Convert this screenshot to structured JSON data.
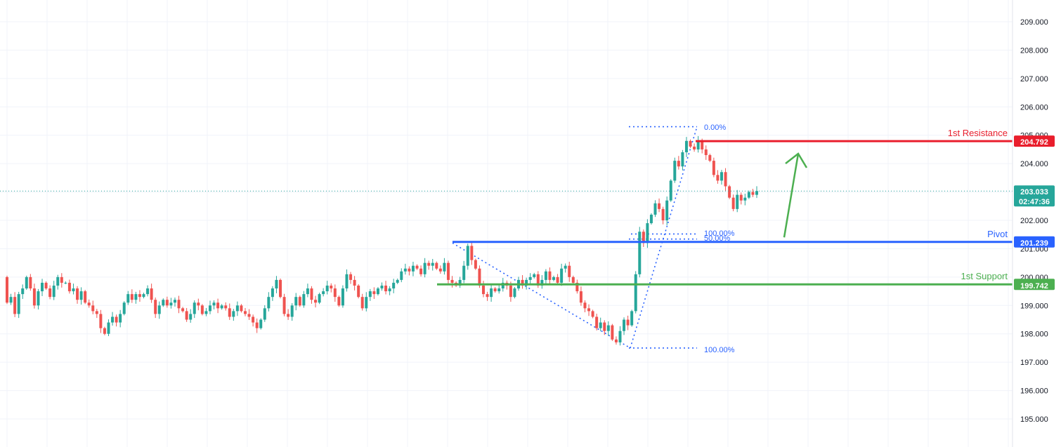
{
  "chart_data": {
    "type": "candlestick",
    "y_ticks": [
      "209.000",
      "208.000",
      "207.000",
      "206.000",
      "205.000",
      "204.000",
      "203.000",
      "202.000",
      "201.000",
      "200.000",
      "199.000",
      "198.000",
      "197.000",
      "196.000",
      "195.000"
    ],
    "ylim": [
      194.3,
      209.7
    ],
    "levels": [
      {
        "name": "1st Resistance",
        "value": 204.792,
        "label": "204.792",
        "color": "#e91e2c"
      },
      {
        "name": "Pivot",
        "value": 201.239,
        "label": "201.239",
        "color": "#2962ff"
      },
      {
        "name": "1st Support",
        "value": 199.742,
        "label": "199.742",
        "color": "#4caf50"
      }
    ],
    "last_price": {
      "value": 203.033,
      "label": "203.033",
      "countdown": "02:47:36",
      "color": "#26a69a"
    },
    "fib_swing_high": {
      "labels": [
        "0.00%"
      ],
      "price": 205.3
    },
    "fib_swing_low": {
      "labels": [
        "100.00%"
      ],
      "price": 197.5
    },
    "fib_mid": {
      "labels": [
        "100.00%",
        "50.00%"
      ],
      "prices": [
        201.52,
        201.34
      ]
    },
    "forecast_arrow": {
      "color": "#4caf50",
      "from_price": 201.4,
      "to_price": 204.35
    },
    "candles": [
      [
        200.0,
        199.1
      ],
      [
        199.1,
        199.3
      ],
      [
        199.3,
        198.7
      ],
      [
        198.7,
        199.4
      ],
      [
        199.4,
        199.6
      ],
      [
        199.6,
        200.0
      ],
      [
        200.0,
        199.6
      ],
      [
        199.6,
        199.0
      ],
      [
        199.0,
        199.5
      ],
      [
        199.5,
        199.8
      ],
      [
        199.8,
        199.6
      ],
      [
        199.6,
        199.3
      ],
      [
        199.3,
        199.7
      ],
      [
        199.7,
        200.0
      ],
      [
        200.0,
        199.8
      ],
      [
        199.8,
        199.8
      ],
      [
        199.8,
        199.5
      ],
      [
        199.5,
        199.6
      ],
      [
        199.6,
        199.2
      ],
      [
        199.2,
        199.5
      ],
      [
        199.5,
        199.1
      ],
      [
        199.1,
        199.0
      ],
      [
        199.0,
        198.8
      ],
      [
        198.8,
        198.7
      ],
      [
        198.7,
        198.2
      ],
      [
        198.2,
        198.0
      ],
      [
        198.0,
        198.4
      ],
      [
        198.4,
        198.6
      ],
      [
        198.6,
        198.4
      ],
      [
        198.4,
        198.7
      ],
      [
        198.7,
        199.1
      ],
      [
        199.1,
        199.4
      ],
      [
        199.4,
        199.2
      ],
      [
        199.2,
        199.4
      ],
      [
        199.4,
        199.3
      ],
      [
        199.3,
        199.4
      ],
      [
        199.4,
        199.6
      ],
      [
        199.6,
        199.2
      ],
      [
        199.2,
        198.7
      ],
      [
        198.7,
        199.0
      ],
      [
        199.0,
        199.2
      ],
      [
        199.2,
        199.0
      ],
      [
        199.0,
        199.1
      ],
      [
        199.1,
        199.2
      ],
      [
        199.2,
        198.9
      ],
      [
        198.9,
        198.8
      ],
      [
        198.8,
        198.5
      ],
      [
        198.5,
        198.7
      ],
      [
        198.7,
        199.1
      ],
      [
        199.1,
        199.0
      ],
      [
        199.0,
        198.7
      ],
      [
        198.7,
        198.8
      ],
      [
        198.8,
        199.0
      ],
      [
        199.0,
        199.1
      ],
      [
        199.1,
        198.9
      ],
      [
        198.9,
        199.0
      ],
      [
        199.0,
        198.9
      ],
      [
        198.9,
        198.6
      ],
      [
        198.6,
        198.8
      ],
      [
        198.8,
        199.0
      ],
      [
        199.0,
        198.8
      ],
      [
        198.8,
        198.7
      ],
      [
        198.7,
        198.6
      ],
      [
        198.6,
        198.4
      ],
      [
        198.4,
        198.2
      ],
      [
        198.2,
        198.5
      ],
      [
        198.5,
        198.9
      ],
      [
        198.9,
        199.3
      ],
      [
        199.3,
        199.6
      ],
      [
        199.6,
        199.9
      ],
      [
        199.9,
        199.3
      ],
      [
        199.3,
        198.7
      ],
      [
        198.7,
        198.6
      ],
      [
        198.6,
        199.0
      ],
      [
        199.0,
        199.3
      ],
      [
        199.3,
        199.0
      ],
      [
        199.0,
        199.4
      ],
      [
        199.4,
        199.6
      ],
      [
        199.6,
        199.2
      ],
      [
        199.2,
        199.1
      ],
      [
        199.1,
        199.4
      ],
      [
        199.4,
        199.5
      ],
      [
        199.5,
        199.7
      ],
      [
        199.7,
        199.6
      ],
      [
        199.6,
        199.3
      ],
      [
        199.3,
        199.0
      ],
      [
        199.0,
        199.6
      ],
      [
        199.6,
        200.1
      ],
      [
        200.1,
        199.9
      ],
      [
        199.9,
        199.7
      ],
      [
        199.7,
        199.3
      ],
      [
        199.3,
        198.9
      ],
      [
        198.9,
        199.3
      ],
      [
        199.3,
        199.5
      ],
      [
        199.5,
        199.4
      ],
      [
        199.4,
        199.6
      ],
      [
        199.6,
        199.7
      ],
      [
        199.7,
        199.5
      ],
      [
        199.5,
        199.6
      ],
      [
        199.6,
        199.8
      ],
      [
        199.8,
        199.9
      ],
      [
        199.9,
        200.2
      ],
      [
        200.2,
        200.3
      ],
      [
        200.3,
        200.2
      ],
      [
        200.2,
        200.4
      ],
      [
        200.4,
        200.3
      ],
      [
        200.3,
        200.1
      ],
      [
        200.1,
        200.5
      ],
      [
        200.5,
        200.4
      ],
      [
        200.4,
        200.5
      ],
      [
        200.5,
        200.3
      ],
      [
        200.3,
        200.2
      ],
      [
        200.2,
        200.5
      ],
      [
        200.5,
        199.9
      ],
      [
        199.9,
        199.8
      ],
      [
        199.8,
        199.7
      ],
      [
        199.7,
        199.9
      ],
      [
        199.9,
        200.4
      ],
      [
        200.4,
        201.1
      ],
      [
        201.1,
        200.6
      ],
      [
        200.6,
        200.3
      ],
      [
        200.3,
        199.7
      ],
      [
        199.7,
        199.4
      ],
      [
        199.4,
        199.3
      ],
      [
        199.3,
        199.6
      ],
      [
        199.6,
        199.5
      ],
      [
        199.5,
        199.6
      ],
      [
        199.6,
        199.8
      ],
      [
        199.8,
        199.7
      ],
      [
        199.7,
        199.3
      ],
      [
        199.3,
        199.6
      ],
      [
        199.6,
        199.9
      ],
      [
        199.9,
        199.7
      ],
      [
        199.7,
        199.9
      ],
      [
        199.9,
        200.0
      ],
      [
        200.0,
        200.1
      ],
      [
        200.1,
        199.7
      ],
      [
        199.7,
        199.9
      ],
      [
        199.9,
        200.2
      ],
      [
        200.2,
        199.9
      ],
      [
        199.9,
        200.0
      ],
      [
        200.0,
        199.8
      ],
      [
        199.8,
        200.3
      ],
      [
        200.3,
        200.4
      ],
      [
        200.4,
        200.0
      ],
      [
        200.0,
        199.8
      ],
      [
        199.8,
        199.5
      ],
      [
        199.5,
        199.1
      ],
      [
        199.1,
        198.9
      ],
      [
        198.9,
        198.8
      ],
      [
        198.8,
        198.6
      ],
      [
        198.6,
        198.2
      ],
      [
        198.2,
        198.4
      ],
      [
        198.4,
        198.1
      ],
      [
        198.1,
        198.3
      ],
      [
        198.3,
        197.8
      ],
      [
        197.8,
        197.7
      ],
      [
        197.7,
        198.1
      ],
      [
        198.1,
        198.5
      ],
      [
        198.5,
        198.3
      ],
      [
        198.3,
        198.8
      ],
      [
        198.8,
        200.1
      ],
      [
        200.1,
        201.6
      ],
      [
        201.6,
        201.2
      ],
      [
        201.2,
        201.9
      ],
      [
        201.9,
        202.2
      ],
      [
        202.2,
        202.6
      ],
      [
        202.6,
        202.4
      ],
      [
        202.4,
        202.0
      ],
      [
        202.0,
        202.7
      ],
      [
        202.7,
        203.4
      ],
      [
        203.4,
        204.1
      ],
      [
        204.1,
        203.9
      ],
      [
        203.9,
        204.4
      ],
      [
        204.4,
        204.8
      ],
      [
        204.8,
        204.6
      ],
      [
        204.6,
        204.5
      ],
      [
        204.5,
        204.8
      ],
      [
        204.8,
        204.5
      ],
      [
        204.5,
        204.3
      ],
      [
        204.3,
        204.1
      ],
      [
        204.1,
        203.6
      ],
      [
        203.6,
        203.4
      ],
      [
        203.4,
        203.7
      ],
      [
        203.7,
        203.2
      ],
      [
        203.2,
        202.8
      ],
      [
        202.8,
        202.4
      ],
      [
        202.4,
        202.9
      ],
      [
        202.9,
        202.7
      ],
      [
        202.7,
        202.8
      ],
      [
        202.8,
        203.0
      ],
      [
        203.0,
        202.9
      ],
      [
        202.9,
        203.033
      ]
    ]
  }
}
